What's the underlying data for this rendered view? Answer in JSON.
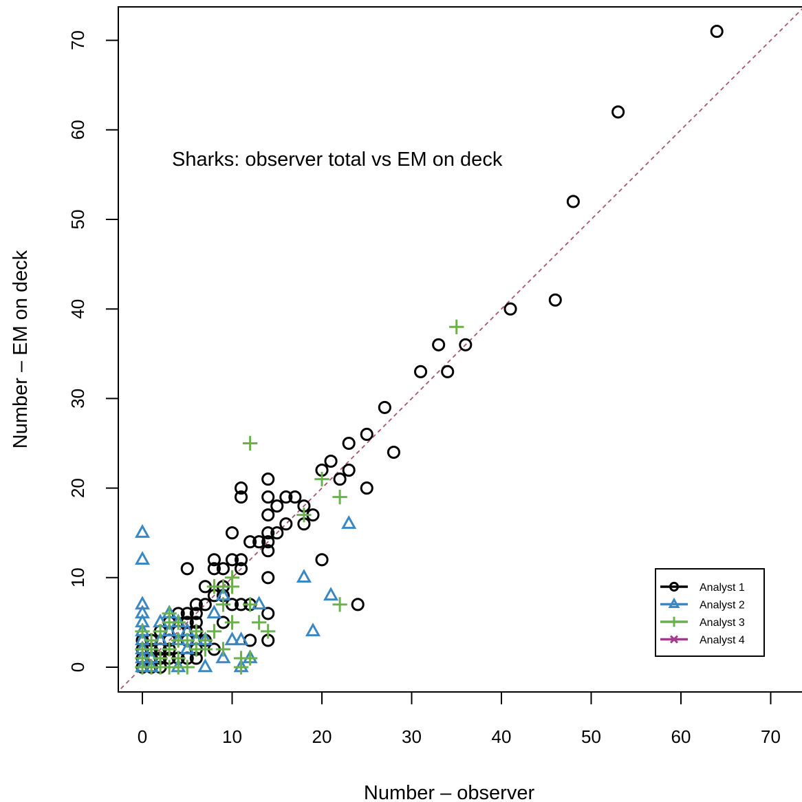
{
  "chart_data": {
    "type": "scatter",
    "title": "Sharks: observer total vs EM on deck",
    "xlabel": "Number – observer",
    "ylabel": "Number – EM on deck",
    "xlim": [
      -3,
      73
    ],
    "ylim": [
      -3,
      74
    ],
    "xticks": [
      "0",
      "10",
      "20",
      "30",
      "40",
      "50",
      "60",
      "70"
    ],
    "yticks": [
      "0",
      "10",
      "20",
      "30",
      "40",
      "50",
      "60",
      "70"
    ],
    "reference_line": {
      "slope": 1,
      "intercept": 0,
      "style": "dashed",
      "color": "#a8566a"
    },
    "legend_position": "bottom-right",
    "grid": false,
    "series": [
      {
        "name": "Analyst 1",
        "marker": "circle",
        "color": "#000000",
        "points": [
          [
            64,
            71
          ],
          [
            53,
            62
          ],
          [
            48,
            52
          ],
          [
            41,
            40
          ],
          [
            46,
            41
          ],
          [
            33,
            36
          ],
          [
            36,
            36
          ],
          [
            31,
            33
          ],
          [
            34,
            33
          ],
          [
            27,
            29
          ],
          [
            28,
            24
          ],
          [
            25,
            26
          ],
          [
            23,
            25
          ],
          [
            21,
            23
          ],
          [
            20,
            22
          ],
          [
            23,
            22
          ],
          [
            22,
            21
          ],
          [
            25,
            20
          ],
          [
            24,
            7
          ],
          [
            20,
            12
          ],
          [
            14,
            21
          ],
          [
            14,
            19
          ],
          [
            14,
            17
          ],
          [
            15,
            18
          ],
          [
            16,
            19
          ],
          [
            17,
            19
          ],
          [
            18,
            18
          ],
          [
            18,
            16
          ],
          [
            19,
            17
          ],
          [
            16,
            16
          ],
          [
            15,
            15
          ],
          [
            14,
            15
          ],
          [
            14,
            14
          ],
          [
            14,
            13
          ],
          [
            13,
            14
          ],
          [
            12,
            14
          ],
          [
            10,
            15
          ],
          [
            11,
            20
          ],
          [
            11,
            19
          ],
          [
            11,
            12
          ],
          [
            10,
            12
          ],
          [
            8,
            12
          ],
          [
            8,
            11
          ],
          [
            9,
            11
          ],
          [
            11,
            11
          ],
          [
            14,
            10
          ],
          [
            14,
            6
          ],
          [
            14,
            3
          ],
          [
            12,
            3
          ],
          [
            12,
            7
          ],
          [
            11,
            7
          ],
          [
            10,
            7
          ],
          [
            9,
            9
          ],
          [
            8,
            8
          ],
          [
            7,
            9
          ],
          [
            7,
            7
          ],
          [
            6,
            7
          ],
          [
            6,
            6
          ],
          [
            5,
            6
          ],
          [
            4,
            6
          ],
          [
            3,
            5
          ],
          [
            2,
            4
          ],
          [
            1,
            3
          ],
          [
            0,
            2
          ],
          [
            0,
            1
          ],
          [
            1,
            1
          ],
          [
            2,
            2
          ],
          [
            3,
            3
          ],
          [
            4,
            4
          ],
          [
            5,
            5
          ],
          [
            6,
            5
          ],
          [
            6,
            4
          ],
          [
            5,
            3
          ],
          [
            6,
            2
          ],
          [
            6,
            1
          ],
          [
            5,
            1
          ],
          [
            4,
            1
          ],
          [
            3,
            1
          ],
          [
            2,
            0
          ],
          [
            1,
            0
          ],
          [
            0,
            0
          ],
          [
            2,
            1
          ],
          [
            3,
            2
          ],
          [
            1,
            2
          ],
          [
            0,
            3
          ],
          [
            7,
            3
          ],
          [
            8,
            2
          ],
          [
            5,
            11
          ],
          [
            9,
            5
          ],
          [
            9,
            8
          ]
        ]
      },
      {
        "name": "Analyst 2",
        "marker": "triangle",
        "color": "#3a87c1",
        "points": [
          [
            0,
            15
          ],
          [
            0,
            12
          ],
          [
            0,
            7
          ],
          [
            0,
            6
          ],
          [
            0,
            5
          ],
          [
            0,
            4
          ],
          [
            0,
            3
          ],
          [
            0,
            2
          ],
          [
            0,
            1
          ],
          [
            0,
            0
          ],
          [
            1,
            0
          ],
          [
            1,
            1
          ],
          [
            2,
            3
          ],
          [
            2,
            5
          ],
          [
            3,
            4
          ],
          [
            4,
            5
          ],
          [
            4,
            3
          ],
          [
            5,
            4
          ],
          [
            5,
            2
          ],
          [
            6,
            3
          ],
          [
            7,
            0
          ],
          [
            7,
            3
          ],
          [
            8,
            6
          ],
          [
            9,
            8
          ],
          [
            9,
            1
          ],
          [
            10,
            3
          ],
          [
            11,
            3
          ],
          [
            12,
            1
          ],
          [
            11,
            0
          ],
          [
            13,
            7
          ],
          [
            18,
            10
          ],
          [
            19,
            4
          ],
          [
            21,
            8
          ],
          [
            23,
            16
          ],
          [
            4,
            0
          ],
          [
            3,
            6
          ]
        ]
      },
      {
        "name": "Analyst 3",
        "marker": "plus",
        "color": "#6ab04c",
        "points": [
          [
            35,
            38
          ],
          [
            12,
            25
          ],
          [
            20,
            21
          ],
          [
            22,
            19
          ],
          [
            22,
            7
          ],
          [
            18,
            17
          ],
          [
            10,
            10
          ],
          [
            10,
            9
          ],
          [
            9,
            9
          ],
          [
            8,
            9
          ],
          [
            9,
            7
          ],
          [
            10,
            5
          ],
          [
            12,
            7
          ],
          [
            13,
            5
          ],
          [
            14,
            4
          ],
          [
            12,
            1
          ],
          [
            11,
            1
          ],
          [
            11,
            0
          ],
          [
            9,
            2
          ],
          [
            8,
            4
          ],
          [
            7,
            3
          ],
          [
            7,
            2
          ],
          [
            6,
            2
          ],
          [
            6,
            4
          ],
          [
            5,
            3
          ],
          [
            5,
            0
          ],
          [
            4,
            0
          ],
          [
            3,
            0
          ],
          [
            2,
            1
          ],
          [
            3,
            2
          ],
          [
            4,
            3
          ],
          [
            3,
            5
          ],
          [
            2,
            4
          ],
          [
            1,
            3
          ],
          [
            0,
            1
          ],
          [
            0,
            0
          ],
          [
            1,
            2
          ],
          [
            4,
            1
          ],
          [
            2,
            0
          ],
          [
            1,
            0
          ],
          [
            3,
            6
          ],
          [
            4,
            5
          ],
          [
            0,
            4
          ],
          [
            0,
            2
          ]
        ]
      },
      {
        "name": "Analyst 4",
        "marker": "cross",
        "color": "#a03c8c",
        "points": []
      }
    ]
  }
}
